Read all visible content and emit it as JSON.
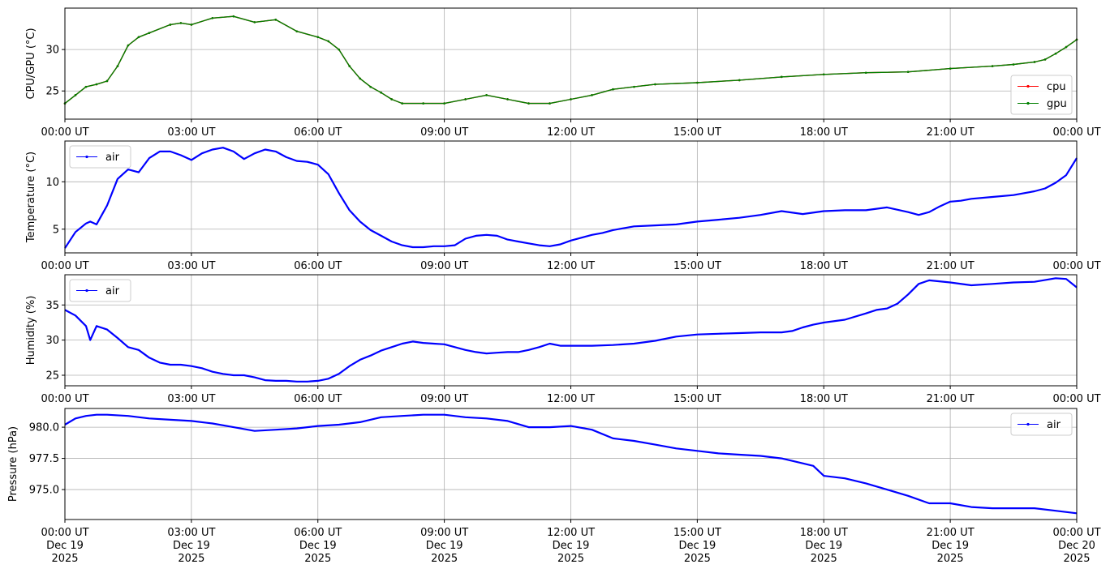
{
  "chart_data": [
    {
      "type": "line",
      "ylabel": "CPU/GPU (°C)",
      "ylim": [
        21.6,
        35.0
      ],
      "yticks": [
        25,
        30
      ],
      "ytick_labels": [
        "25",
        "30"
      ],
      "xlim_hours": [
        0,
        24
      ],
      "xtick_hours": [
        0,
        3,
        6,
        9,
        12,
        15,
        18,
        21,
        24
      ],
      "xtick_labels": [
        "00:00 UT",
        "03:00 UT",
        "06:00 UT",
        "09:00 UT",
        "12:00 UT",
        "15:00 UT",
        "18:00 UT",
        "21:00 UT",
        "00:00 UT"
      ],
      "grid": true,
      "legend": "lower-right",
      "series": [
        {
          "name": "cpu",
          "color": "#ff0000",
          "x_hours": [
            0,
            0.25,
            0.5,
            0.75,
            1.0,
            1.25,
            1.5,
            1.75,
            2.0,
            2.5,
            2.75,
            3.0,
            3.5,
            4.0,
            4.5,
            5.0,
            5.5,
            6.0,
            6.25,
            6.5,
            6.75,
            7.0,
            7.25,
            7.5,
            7.75,
            8.0,
            8.5,
            9.0,
            9.5,
            10.0,
            10.5,
            11.0,
            11.5,
            12.0,
            12.5,
            13.0,
            13.5,
            14.0,
            15.0,
            16.0,
            17.0,
            18.0,
            19.0,
            20.0,
            21.0,
            22.0,
            22.5,
            23.0,
            23.25,
            23.5,
            23.75,
            24.0
          ],
          "values": [
            23.5,
            24.5,
            25.5,
            25.8,
            26.2,
            28.0,
            30.5,
            31.5,
            32.0,
            33.0,
            33.2,
            33.0,
            33.8,
            34.0,
            33.3,
            33.6,
            32.2,
            31.5,
            31.0,
            30.0,
            28.0,
            26.5,
            25.5,
            24.8,
            24.0,
            23.5,
            23.5,
            23.5,
            24.0,
            24.5,
            24.0,
            23.5,
            23.5,
            24.0,
            24.5,
            25.2,
            25.5,
            25.8,
            26.0,
            26.3,
            26.7,
            27.0,
            27.2,
            27.3,
            27.7,
            28.0,
            28.2,
            28.5,
            28.8,
            29.5,
            30.3,
            31.2
          ]
        },
        {
          "name": "gpu",
          "color": "#008000",
          "x_hours": [
            0,
            0.25,
            0.5,
            0.75,
            1.0,
            1.25,
            1.5,
            1.75,
            2.0,
            2.5,
            2.75,
            3.0,
            3.5,
            4.0,
            4.5,
            5.0,
            5.5,
            6.0,
            6.25,
            6.5,
            6.75,
            7.0,
            7.25,
            7.5,
            7.75,
            8.0,
            8.5,
            9.0,
            9.5,
            10.0,
            10.5,
            11.0,
            11.5,
            12.0,
            12.5,
            13.0,
            13.5,
            14.0,
            15.0,
            16.0,
            17.0,
            18.0,
            19.0,
            20.0,
            21.0,
            22.0,
            22.5,
            23.0,
            23.25,
            23.5,
            23.75,
            24.0
          ],
          "values": [
            23.5,
            24.5,
            25.5,
            25.8,
            26.2,
            28.0,
            30.5,
            31.5,
            32.0,
            33.0,
            33.2,
            33.0,
            33.8,
            34.0,
            33.3,
            33.6,
            32.2,
            31.5,
            31.0,
            30.0,
            28.0,
            26.5,
            25.5,
            24.8,
            24.0,
            23.5,
            23.5,
            23.5,
            24.0,
            24.5,
            24.0,
            23.5,
            23.5,
            24.0,
            24.5,
            25.2,
            25.5,
            25.8,
            26.0,
            26.3,
            26.7,
            27.0,
            27.2,
            27.3,
            27.7,
            28.0,
            28.2,
            28.5,
            28.8,
            29.5,
            30.3,
            31.2
          ]
        }
      ]
    },
    {
      "type": "line",
      "ylabel": "Temperature (°C)",
      "ylim": [
        2.5,
        14.3
      ],
      "yticks": [
        5,
        10
      ],
      "ytick_labels": [
        "5",
        "10"
      ],
      "xlim_hours": [
        0,
        24
      ],
      "xtick_hours": [
        0,
        3,
        6,
        9,
        12,
        15,
        18,
        21,
        24
      ],
      "xtick_labels": [
        "00:00 UT",
        "03:00 UT",
        "06:00 UT",
        "09:00 UT",
        "12:00 UT",
        "15:00 UT",
        "18:00 UT",
        "21:00 UT",
        "00:00 UT"
      ],
      "grid": true,
      "legend": "upper-left",
      "series": [
        {
          "name": "air",
          "color": "#0000ff",
          "x_hours": [
            0,
            0.25,
            0.5,
            0.6,
            0.75,
            1.0,
            1.25,
            1.5,
            1.75,
            2.0,
            2.25,
            2.5,
            2.75,
            3.0,
            3.25,
            3.5,
            3.75,
            4.0,
            4.25,
            4.5,
            4.75,
            5.0,
            5.25,
            5.5,
            5.75,
            6.0,
            6.25,
            6.5,
            6.75,
            7.0,
            7.25,
            7.5,
            7.75,
            8.0,
            8.25,
            8.5,
            8.75,
            9.0,
            9.25,
            9.5,
            9.75,
            10.0,
            10.25,
            10.5,
            10.75,
            11.0,
            11.25,
            11.5,
            11.75,
            12.0,
            12.25,
            12.5,
            12.75,
            13.0,
            13.5,
            14.0,
            14.5,
            15.0,
            15.5,
            16.0,
            16.5,
            17.0,
            17.5,
            18.0,
            18.5,
            19.0,
            19.5,
            20.0,
            20.25,
            20.5,
            20.75,
            21.0,
            21.25,
            21.5,
            22.0,
            22.5,
            23.0,
            23.25,
            23.5,
            23.75,
            24.0
          ],
          "values": [
            3.0,
            4.7,
            5.6,
            5.8,
            5.5,
            7.5,
            10.3,
            11.3,
            11.0,
            12.5,
            13.2,
            13.2,
            12.8,
            12.3,
            13.0,
            13.4,
            13.6,
            13.2,
            12.4,
            13.0,
            13.4,
            13.2,
            12.6,
            12.2,
            12.1,
            11.8,
            10.8,
            8.8,
            7.0,
            5.8,
            4.9,
            4.3,
            3.7,
            3.3,
            3.1,
            3.1,
            3.2,
            3.2,
            3.3,
            4.0,
            4.3,
            4.4,
            4.3,
            3.9,
            3.7,
            3.5,
            3.3,
            3.2,
            3.4,
            3.8,
            4.1,
            4.4,
            4.6,
            4.9,
            5.3,
            5.4,
            5.5,
            5.8,
            6.0,
            6.2,
            6.5,
            6.9,
            6.6,
            6.9,
            7.0,
            7.0,
            7.3,
            6.8,
            6.5,
            6.8,
            7.4,
            7.9,
            8.0,
            8.2,
            8.4,
            8.6,
            9.0,
            9.3,
            9.9,
            10.7,
            12.5
          ]
        }
      ]
    },
    {
      "type": "line",
      "ylabel": "Humidity (%)",
      "ylim": [
        23.5,
        39.3
      ],
      "yticks": [
        25,
        30,
        35
      ],
      "ytick_labels": [
        "25",
        "30",
        "35"
      ],
      "xlim_hours": [
        0,
        24
      ],
      "xtick_hours": [
        0,
        3,
        6,
        9,
        12,
        15,
        18,
        21,
        24
      ],
      "xtick_labels": [
        "00:00 UT",
        "03:00 UT",
        "06:00 UT",
        "09:00 UT",
        "12:00 UT",
        "15:00 UT",
        "18:00 UT",
        "21:00 UT",
        "00:00 UT"
      ],
      "grid": true,
      "legend": "upper-left",
      "series": [
        {
          "name": "air",
          "color": "#0000ff",
          "x_hours": [
            0,
            0.25,
            0.5,
            0.6,
            0.75,
            1.0,
            1.25,
            1.5,
            1.75,
            2.0,
            2.25,
            2.5,
            2.75,
            3.0,
            3.25,
            3.5,
            3.75,
            4.0,
            4.25,
            4.5,
            4.75,
            5.0,
            5.25,
            5.5,
            5.75,
            6.0,
            6.25,
            6.5,
            6.75,
            7.0,
            7.25,
            7.5,
            7.75,
            8.0,
            8.25,
            8.5,
            8.75,
            9.0,
            9.25,
            9.5,
            9.75,
            10.0,
            10.25,
            10.5,
            10.75,
            11.0,
            11.25,
            11.5,
            11.75,
            12.0,
            12.5,
            13.0,
            13.5,
            14.0,
            14.5,
            15.0,
            15.5,
            16.0,
            16.5,
            17.0,
            17.25,
            17.5,
            17.75,
            18.0,
            18.5,
            19.0,
            19.25,
            19.5,
            19.75,
            20.0,
            20.25,
            20.5,
            21.0,
            21.5,
            22.0,
            22.5,
            23.0,
            23.5,
            23.75,
            24.0
          ],
          "values": [
            34.3,
            33.5,
            32.0,
            30.0,
            32.0,
            31.5,
            30.3,
            29.0,
            28.6,
            27.5,
            26.8,
            26.5,
            26.5,
            26.3,
            26.0,
            25.5,
            25.2,
            25.0,
            25.0,
            24.7,
            24.3,
            24.2,
            24.2,
            24.1,
            24.1,
            24.2,
            24.5,
            25.2,
            26.3,
            27.2,
            27.8,
            28.5,
            29.0,
            29.5,
            29.8,
            29.6,
            29.5,
            29.4,
            29.0,
            28.6,
            28.3,
            28.1,
            28.2,
            28.3,
            28.3,
            28.6,
            29.0,
            29.5,
            29.2,
            29.2,
            29.2,
            29.3,
            29.5,
            29.9,
            30.5,
            30.8,
            30.9,
            31.0,
            31.1,
            31.1,
            31.3,
            31.8,
            32.2,
            32.5,
            32.9,
            33.8,
            34.3,
            34.5,
            35.2,
            36.5,
            38.0,
            38.5,
            38.2,
            37.8,
            38.0,
            38.2,
            38.3,
            38.8,
            38.7,
            37.5
          ]
        }
      ]
    },
    {
      "type": "line",
      "ylabel": "Pressure (hPa)",
      "ylim": [
        972.6,
        981.5
      ],
      "yticks": [
        975.0,
        977.5,
        980.0
      ],
      "ytick_labels": [
        "975.0",
        "977.5",
        "980.0"
      ],
      "xlim_hours": [
        0,
        24
      ],
      "xtick_hours": [
        0,
        3,
        6,
        9,
        12,
        15,
        18,
        21,
        24
      ],
      "xtick_labels": [
        "00:00 UT\nDec 19\n2025",
        "03:00 UT\nDec 19\n2025",
        "06:00 UT\nDec 19\n2025",
        "09:00 UT\nDec 19\n2025",
        "12:00 UT\nDec 19\n2025",
        "15:00 UT\nDec 19\n2025",
        "18:00 UT\nDec 19\n2025",
        "21:00 UT\nDec 19\n2025",
        "00:00 UT\nDec 20\n2025"
      ],
      "grid": true,
      "legend": "upper-right",
      "series": [
        {
          "name": "air",
          "color": "#0000ff",
          "x_hours": [
            0,
            0.25,
            0.5,
            0.75,
            1.0,
            1.5,
            2.0,
            2.5,
            3.0,
            3.5,
            4.0,
            4.5,
            5.0,
            5.5,
            6.0,
            6.5,
            7.0,
            7.5,
            8.0,
            8.5,
            9.0,
            9.5,
            10.0,
            10.5,
            11.0,
            11.5,
            12.0,
            12.5,
            13.0,
            13.5,
            14.0,
            14.5,
            15.0,
            15.5,
            16.0,
            16.5,
            17.0,
            17.5,
            17.75,
            18.0,
            18.5,
            19.0,
            19.5,
            20.0,
            20.5,
            21.0,
            21.5,
            22.0,
            22.5,
            23.0,
            23.5,
            24.0
          ],
          "values": [
            980.2,
            980.7,
            980.9,
            981.0,
            981.0,
            980.9,
            980.7,
            980.6,
            980.5,
            980.3,
            980.0,
            979.7,
            979.8,
            979.9,
            980.1,
            980.2,
            980.4,
            980.8,
            980.9,
            981.0,
            981.0,
            980.8,
            980.7,
            980.5,
            980.0,
            980.0,
            980.1,
            979.8,
            979.1,
            978.9,
            978.6,
            978.3,
            978.1,
            977.9,
            977.8,
            977.7,
            977.5,
            977.1,
            976.9,
            976.1,
            975.9,
            975.5,
            975.0,
            974.5,
            973.9,
            973.9,
            973.6,
            973.5,
            973.5,
            973.5,
            973.3,
            973.1
          ]
        }
      ]
    }
  ]
}
